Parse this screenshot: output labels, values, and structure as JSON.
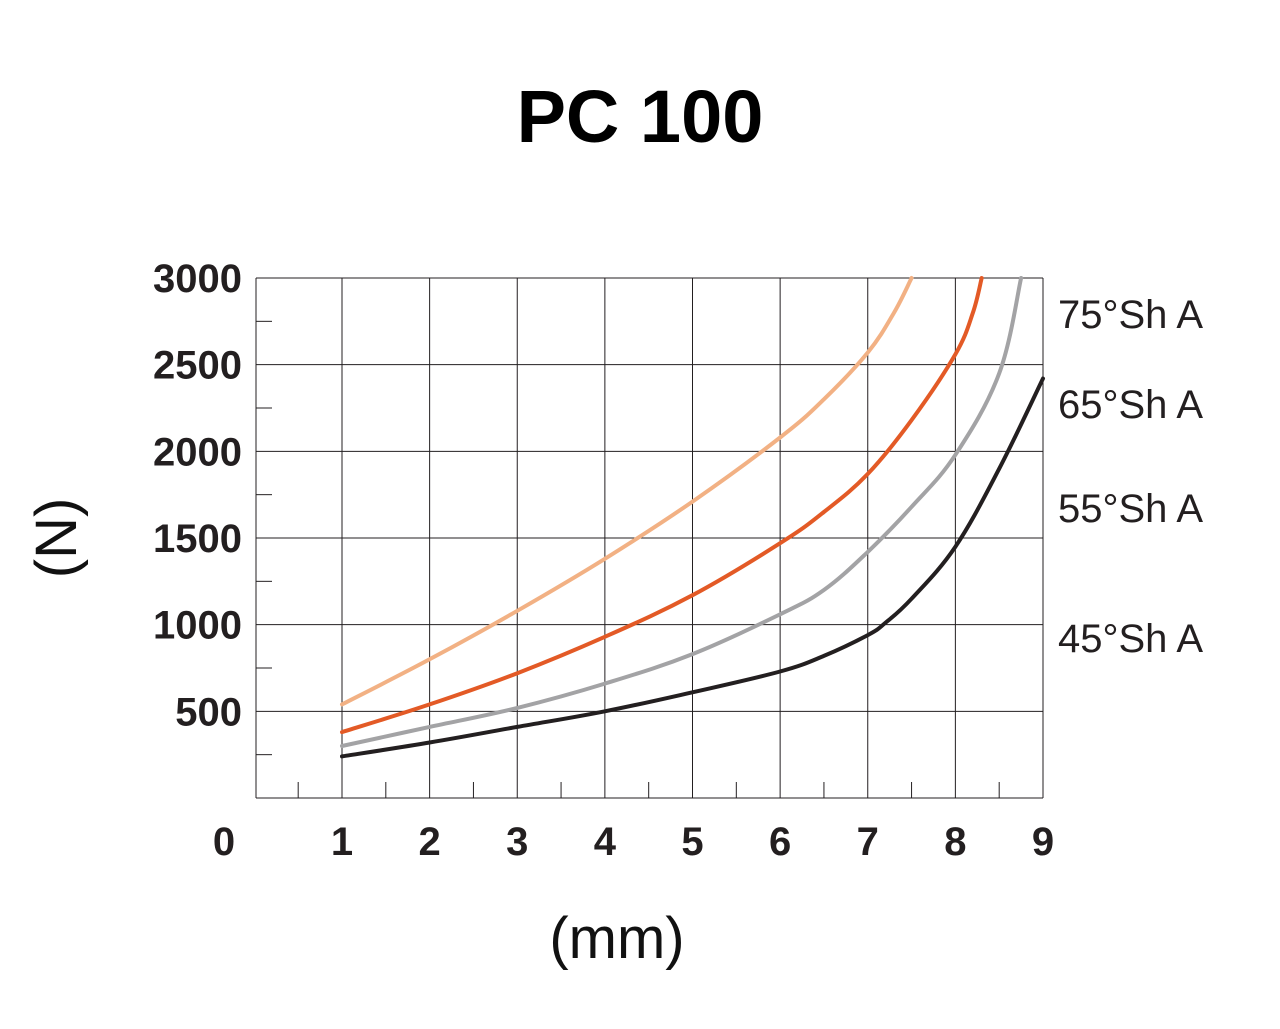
{
  "chart_data": {
    "type": "line",
    "title": "PC 100",
    "xlabel": "(mm)",
    "ylabel": "(N)",
    "xlim": [
      0,
      9
    ],
    "ylim": [
      0,
      3000
    ],
    "grid": true,
    "x_ticks": [
      "0",
      "1",
      "2",
      "3",
      "4",
      "5",
      "6",
      "7",
      "8",
      "9"
    ],
    "y_ticks": [
      "500",
      "1000",
      "1500",
      "2000",
      "2500",
      "3000"
    ],
    "legend_placement": "right of each curve",
    "series": [
      {
        "name": "75°Sh A",
        "color": "#f2b184",
        "points": [
          [
            1,
            540
          ],
          [
            2,
            800
          ],
          [
            3,
            1080
          ],
          [
            4,
            1380
          ],
          [
            5,
            1710
          ],
          [
            6,
            2080
          ],
          [
            6.5,
            2300
          ],
          [
            7,
            2570
          ],
          [
            7.3,
            2800
          ],
          [
            7.5,
            3000
          ]
        ]
      },
      {
        "name": "65°Sh A",
        "color": "#e35a26",
        "points": [
          [
            1,
            380
          ],
          [
            2,
            540
          ],
          [
            3,
            720
          ],
          [
            4,
            930
          ],
          [
            5,
            1170
          ],
          [
            6,
            1470
          ],
          [
            6.5,
            1650
          ],
          [
            7,
            1870
          ],
          [
            7.5,
            2180
          ],
          [
            8,
            2560
          ],
          [
            8.2,
            2800
          ],
          [
            8.3,
            3000
          ]
        ]
      },
      {
        "name": "55°Sh A",
        "color": "#a3a3a5",
        "points": [
          [
            1,
            300
          ],
          [
            2,
            410
          ],
          [
            3,
            520
          ],
          [
            4,
            660
          ],
          [
            5,
            830
          ],
          [
            6,
            1060
          ],
          [
            6.5,
            1200
          ],
          [
            7,
            1420
          ],
          [
            7.5,
            1680
          ],
          [
            8,
            1980
          ],
          [
            8.5,
            2450
          ],
          [
            8.75,
            3000
          ]
        ]
      },
      {
        "name": "45°Sh A",
        "color": "#231f20",
        "points": [
          [
            1,
            240
          ],
          [
            2,
            320
          ],
          [
            3,
            410
          ],
          [
            4,
            500
          ],
          [
            5,
            610
          ],
          [
            6,
            730
          ],
          [
            6.5,
            820
          ],
          [
            7,
            940
          ],
          [
            7.2,
            1010
          ],
          [
            7.5,
            1150
          ],
          [
            8,
            1450
          ],
          [
            8.5,
            1900
          ],
          [
            9,
            2420
          ]
        ]
      }
    ]
  }
}
